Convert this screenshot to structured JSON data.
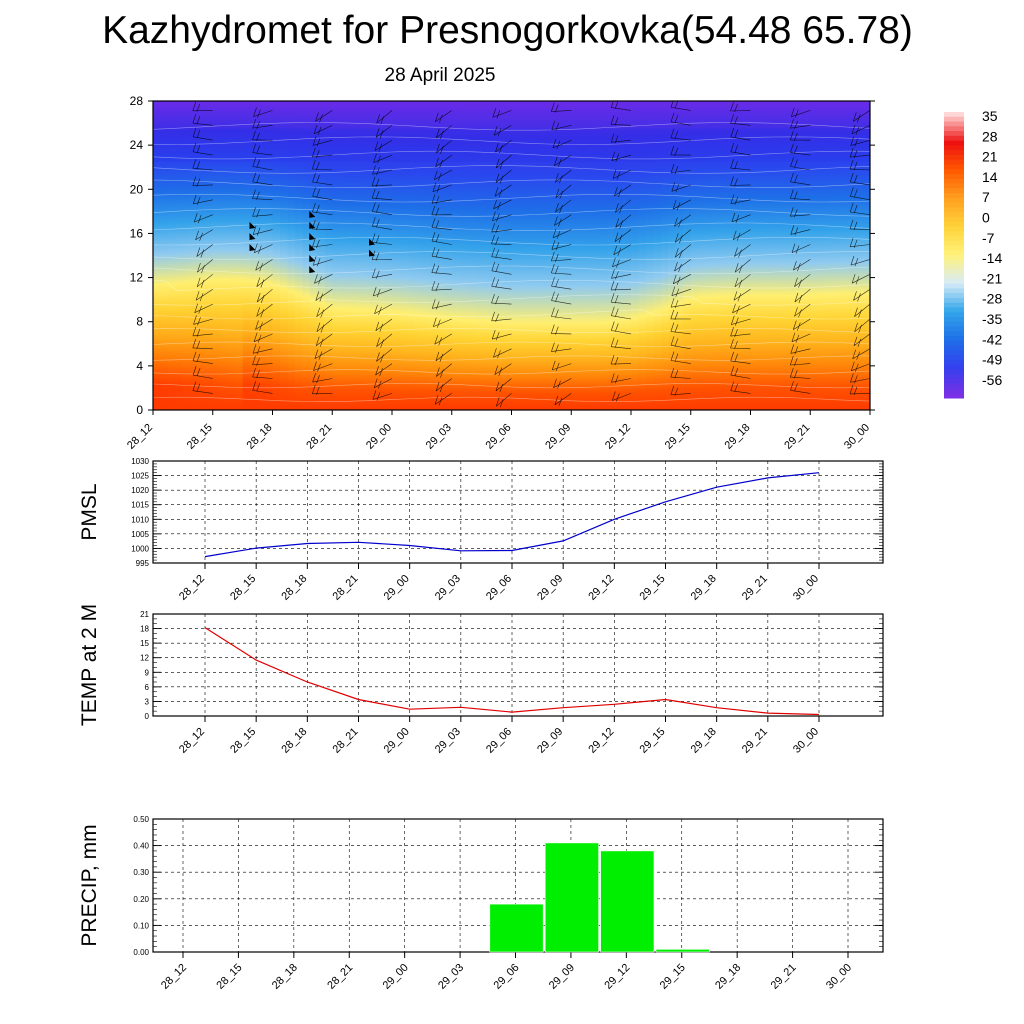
{
  "header": {
    "title": "Kazhydromet for Presnogorkovka(54.48 65.78)",
    "subtitle": "28 April 2025"
  },
  "chart_data": [
    {
      "type": "heatmap",
      "title": "",
      "xlabel": "",
      "ylabel": "",
      "x_ticks": [
        "28_12",
        "28_15",
        "28_18",
        "28_21",
        "29_00",
        "29_03",
        "29_06",
        "29_09",
        "29_12",
        "29_15",
        "29_18",
        "29_21",
        "30_00"
      ],
      "y_ticks": [
        0,
        4,
        8,
        12,
        16,
        20,
        24,
        28
      ],
      "ylim": [
        0,
        28
      ],
      "colorbar_levels": [
        35,
        28,
        21,
        14,
        7,
        0,
        -7,
        -14,
        -21,
        -28,
        -35,
        -42,
        -49,
        -56
      ],
      "freezing_level_x": [
        0,
        0.5,
        1,
        1.5,
        2,
        2.5,
        3,
        3.5,
        4,
        4.5,
        5,
        5.5,
        6,
        6.5,
        7,
        7.5,
        8,
        8.5,
        9,
        9.5,
        10,
        10.5,
        11,
        11.5,
        12
      ],
      "freezing_level_y": [
        11.3,
        11.5,
        11.8,
        11.8,
        11.4,
        10.4,
        9.2,
        9.1,
        8.9,
        8.6,
        8.3,
        8.1,
        7.9,
        7.9,
        7.9,
        7.9,
        8.2,
        9.0,
        10.1,
        10.3,
        10.4,
        10.4,
        10.4,
        10.5,
        10.5
      ],
      "colors": {
        "warm": "#ff3a00",
        "freezing": "#ffef70",
        "cold": "#1f8ee6",
        "top": "#6a2be8"
      }
    },
    {
      "type": "line",
      "title": "",
      "xlabel": "",
      "ylabel": "PMSL",
      "categories": [
        "28_12",
        "28_15",
        "28_18",
        "28_21",
        "29_00",
        "29_03",
        "29_06",
        "29_09",
        "29_12",
        "29_15",
        "29_18",
        "29_21",
        "30_00"
      ],
      "values": [
        997.2,
        1000.1,
        1001.7,
        1002.1,
        1001.0,
        999.2,
        999.3,
        1002.6,
        1010.0,
        1016.0,
        1021.0,
        1024.2,
        1026.0
      ],
      "ylim": [
        995,
        1030
      ],
      "y_ticks": [
        995,
        1000,
        1005,
        1010,
        1015,
        1020,
        1025,
        1030
      ],
      "grid": true,
      "color": "#0000cc"
    },
    {
      "type": "line",
      "title": "",
      "xlabel": "",
      "ylabel": "TEMP at 2 M",
      "categories": [
        "28_12",
        "28_15",
        "28_18",
        "28_21",
        "29_00",
        "29_03",
        "29_06",
        "29_09",
        "29_12",
        "29_15",
        "29_18",
        "29_21",
        "30_00"
      ],
      "values": [
        18.2,
        11.5,
        7.0,
        3.4,
        1.4,
        1.8,
        0.8,
        1.7,
        2.4,
        3.4,
        1.7,
        0.6,
        0.3
      ],
      "ylim": [
        0,
        21
      ],
      "y_ticks": [
        0,
        3,
        6,
        9,
        12,
        15,
        18,
        21
      ],
      "grid": true,
      "color": "#e00000"
    },
    {
      "type": "bar",
      "title": "",
      "xlabel": "",
      "ylabel": "PRECIP, mm",
      "categories": [
        "28_12",
        "28_15",
        "28_18",
        "28_21",
        "29_00",
        "29_03",
        "29_06",
        "29_09",
        "29_12",
        "29_15",
        "29_18",
        "29_21",
        "30_00"
      ],
      "values": [
        0,
        0,
        0,
        0,
        0,
        0,
        0.18,
        0.41,
        0.38,
        0.01,
        0,
        0,
        0
      ],
      "tick_labels": [
        "0.00",
        "0.10",
        "0.20",
        "0.30",
        "0.40",
        "0.50"
      ],
      "ylim": [
        0,
        0.5
      ],
      "grid": true,
      "color": "#00ee00"
    }
  ]
}
